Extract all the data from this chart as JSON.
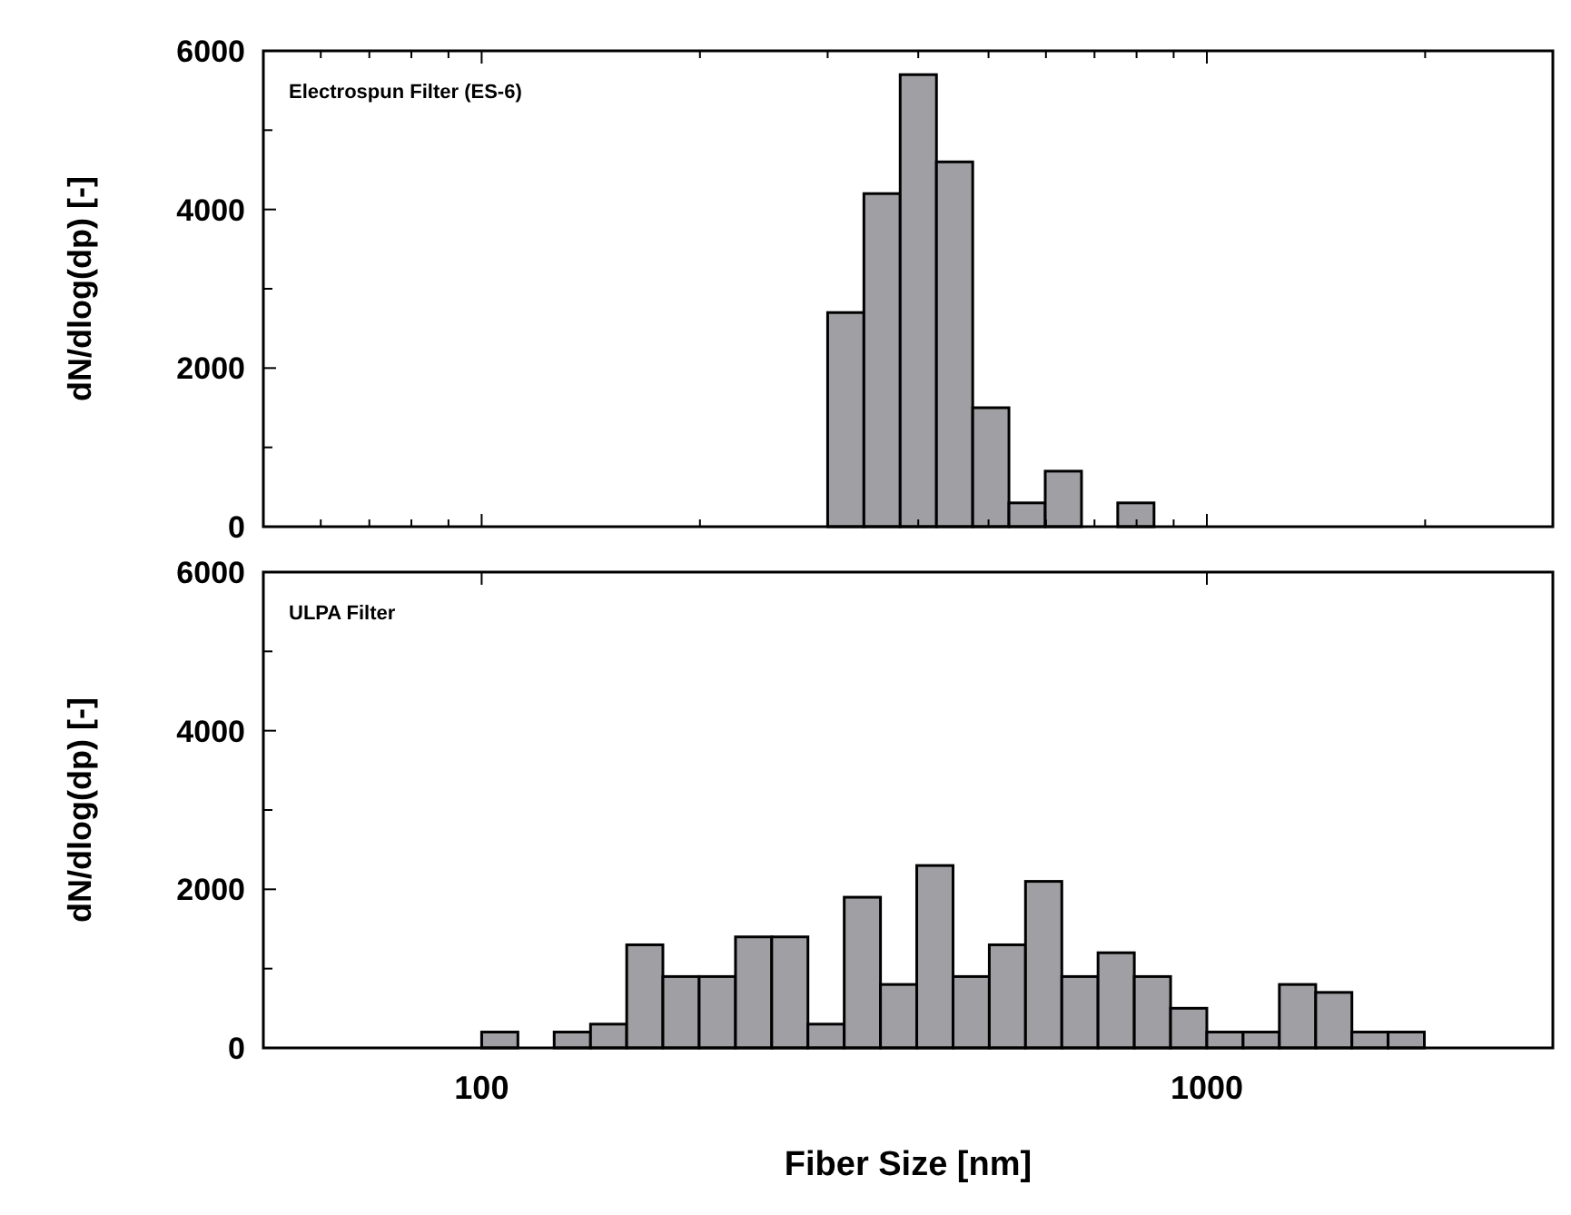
{
  "chart_data": [
    {
      "type": "histogram",
      "annotations": [
        "Electrospun Filter (ES-6)"
      ],
      "ylabel": "dN/dlog(dp) [-]",
      "log": "x",
      "color": "#a0a0a4",
      "tick_labels": "y",
      "bins": [
        300,
        336.6,
        377.7,
        423.8,
        475.5,
        533.5,
        598.6,
        671.7,
        753.6,
        845.6
      ],
      "values": [
        2700,
        4200,
        5700,
        4600,
        1500,
        300,
        700,
        0,
        300
      ],
      "xlim": [
        50,
        3000
      ],
      "ylim": [
        0,
        6000
      ],
      "xticks": [
        {
          "value": 60,
          "label": null
        },
        {
          "value": 70,
          "label": null
        },
        {
          "value": 80,
          "label": null
        },
        {
          "value": 90,
          "label": null
        },
        {
          "value": 100,
          "label": null
        },
        {
          "value": 200,
          "label": null
        },
        {
          "value": 300,
          "label": null
        },
        {
          "value": 400,
          "label": null
        },
        {
          "value": 500,
          "label": null
        },
        {
          "value": 600,
          "label": null
        },
        {
          "value": 700,
          "label": null
        },
        {
          "value": 800,
          "label": null
        },
        {
          "value": 900,
          "label": null
        },
        {
          "value": 1000,
          "label": null
        },
        {
          "value": 2000,
          "label": null
        }
      ],
      "yticks": [
        0,
        {
          "value": 1000,
          "label": null
        },
        2000,
        {
          "value": 3000,
          "label": null
        },
        4000,
        {
          "value": 5000,
          "label": null
        },
        6000
      ]
    },
    {
      "type": "histogram",
      "annotations": [
        "ULPA Filter"
      ],
      "ylabel": "dN/dlog(dp) [-]",
      "xlabel": "Fiber Size [nm]",
      "log": "x",
      "color": "#a0a0a4",
      "bins": [
        100,
        112.2,
        125.9,
        141.3,
        158.5,
        177.8,
        199.5,
        223.9,
        251.2,
        281.8,
        316.2,
        354.8,
        398.1,
        446.7,
        501.2,
        562.3,
        631,
        707.9,
        794.3,
        891.3,
        1000,
        1122,
        1259,
        1413,
        1585,
        1778,
        1995
      ],
      "values": [
        200,
        0,
        200,
        300,
        1300,
        900,
        900,
        1400,
        1400,
        300,
        1900,
        800,
        2300,
        900,
        1300,
        2100,
        900,
        1200,
        900,
        500,
        200,
        200,
        800,
        700,
        200,
        200
      ],
      "xlim": [
        50,
        3000
      ],
      "ylim": [
        0,
        6000
      ],
      "xticks": [
        100,
        1000
      ],
      "yticks": [
        0,
        {
          "value": 1000,
          "label": null
        },
        2000,
        {
          "value": 3000,
          "label": null
        },
        4000,
        {
          "value": 5000,
          "label": null
        },
        6000
      ]
    }
  ]
}
